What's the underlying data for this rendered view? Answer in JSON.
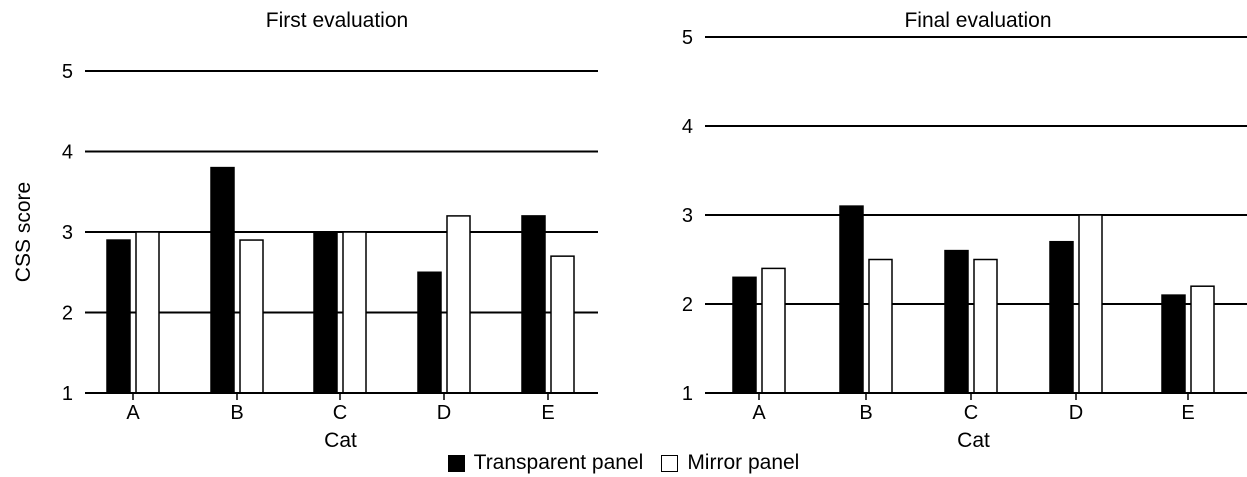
{
  "chart_data": [
    {
      "type": "bar",
      "title": "First evaluation",
      "xlabel": "Cat",
      "ylabel": "CSS score",
      "ylim": [
        1,
        5
      ],
      "yticks": [
        1,
        2,
        3,
        4,
        5
      ],
      "grid": "horizontal lines at 2, 3, 4, 5",
      "categories": [
        "A",
        "B",
        "C",
        "D",
        "E"
      ],
      "series": [
        {
          "name": "Transparent panel",
          "values": [
            2.9,
            3.8,
            3.0,
            2.5,
            3.2
          ]
        },
        {
          "name": "Mirror panel",
          "values": [
            3.0,
            2.9,
            3.0,
            3.2,
            2.7
          ]
        }
      ]
    },
    {
      "type": "bar",
      "title": "Final evaluation",
      "xlabel": "Cat",
      "ylabel": "",
      "ylim": [
        1,
        5
      ],
      "yticks": [
        1,
        2,
        3,
        4,
        5
      ],
      "grid": "horizontal lines at 2, 3, 4, 5",
      "categories": [
        "A",
        "B",
        "C",
        "D",
        "E"
      ],
      "series": [
        {
          "name": "Transparent panel",
          "values": [
            2.3,
            3.1,
            2.6,
            2.7,
            2.1
          ]
        },
        {
          "name": "Mirror panel",
          "values": [
            2.4,
            2.5,
            2.5,
            3.0,
            2.2
          ]
        }
      ]
    }
  ],
  "legend": {
    "placement": "bottom-center",
    "items": [
      {
        "label": "Transparent panel",
        "color": "#000000"
      },
      {
        "label": "Mirror panel",
        "color": "#ffffff"
      }
    ]
  }
}
